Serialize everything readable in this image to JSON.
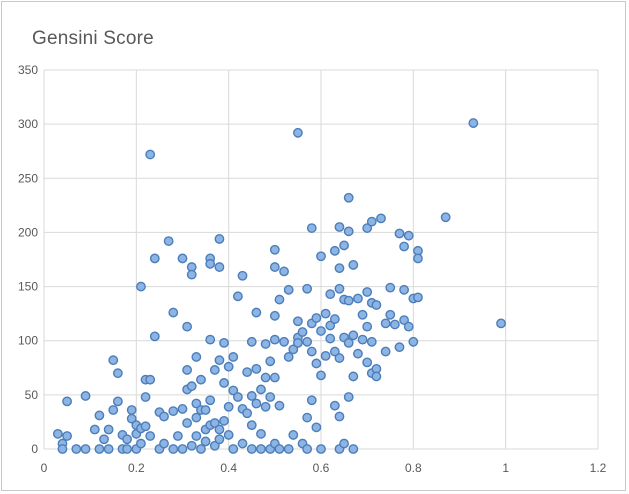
{
  "chart_data": {
    "type": "scatter",
    "title": "Gensini Score",
    "xlabel": "",
    "ylabel": "",
    "xlim": [
      0,
      1.2
    ],
    "ylim": [
      0,
      350
    ],
    "x_ticks": [
      "0",
      "0.2",
      "0.4",
      "0.6",
      "0.8",
      "1",
      "1.2"
    ],
    "y_ticks": [
      "0",
      "50",
      "100",
      "150",
      "200",
      "250",
      "300",
      "350"
    ],
    "grid": "vertical and horizontal major gridlines",
    "legend": "none",
    "marker_fill": "#8eb4e3",
    "marker_edge": "#4a7ebb",
    "points": [
      [
        0.03,
        14
      ],
      [
        0.04,
        5
      ],
      [
        0.05,
        12
      ],
      [
        0.04,
        0
      ],
      [
        0.05,
        44
      ],
      [
        0.07,
        0
      ],
      [
        0.09,
        49
      ],
      [
        0.09,
        0
      ],
      [
        0.11,
        18
      ],
      [
        0.12,
        0
      ],
      [
        0.12,
        31
      ],
      [
        0.13,
        9
      ],
      [
        0.14,
        18
      ],
      [
        0.14,
        0
      ],
      [
        0.15,
        82
      ],
      [
        0.15,
        36
      ],
      [
        0.16,
        70
      ],
      [
        0.16,
        44
      ],
      [
        0.17,
        13
      ],
      [
        0.17,
        0
      ],
      [
        0.18,
        9
      ],
      [
        0.18,
        0
      ],
      [
        0.19,
        28
      ],
      [
        0.19,
        36
      ],
      [
        0.2,
        14
      ],
      [
        0.2,
        22
      ],
      [
        0.2,
        0
      ],
      [
        0.21,
        150
      ],
      [
        0.21,
        19
      ],
      [
        0.21,
        5
      ],
      [
        0.22,
        64
      ],
      [
        0.22,
        48
      ],
      [
        0.22,
        21
      ],
      [
        0.23,
        272
      ],
      [
        0.23,
        64
      ],
      [
        0.23,
        12
      ],
      [
        0.24,
        176
      ],
      [
        0.24,
        104
      ],
      [
        0.25,
        34
      ],
      [
        0.25,
        0
      ],
      [
        0.26,
        30
      ],
      [
        0.26,
        5
      ],
      [
        0.27,
        192
      ],
      [
        0.28,
        126
      ],
      [
        0.28,
        35
      ],
      [
        0.28,
        0
      ],
      [
        0.29,
        12
      ],
      [
        0.3,
        176
      ],
      [
        0.3,
        37
      ],
      [
        0.3,
        0
      ],
      [
        0.31,
        113
      ],
      [
        0.31,
        73
      ],
      [
        0.31,
        55
      ],
      [
        0.31,
        24
      ],
      [
        0.32,
        168
      ],
      [
        0.32,
        161
      ],
      [
        0.32,
        58
      ],
      [
        0.32,
        3
      ],
      [
        0.33,
        85
      ],
      [
        0.33,
        42
      ],
      [
        0.33,
        29
      ],
      [
        0.33,
        12
      ],
      [
        0.34,
        64
      ],
      [
        0.34,
        36
      ],
      [
        0.34,
        0
      ],
      [
        0.35,
        36
      ],
      [
        0.35,
        18
      ],
      [
        0.35,
        7
      ],
      [
        0.36,
        176
      ],
      [
        0.36,
        171
      ],
      [
        0.36,
        101
      ],
      [
        0.36,
        45
      ],
      [
        0.36,
        22
      ],
      [
        0.37,
        73
      ],
      [
        0.37,
        24
      ],
      [
        0.37,
        3
      ],
      [
        0.38,
        194
      ],
      [
        0.38,
        168
      ],
      [
        0.38,
        82
      ],
      [
        0.38,
        18
      ],
      [
        0.38,
        9
      ],
      [
        0.39,
        98
      ],
      [
        0.39,
        61
      ],
      [
        0.39,
        26
      ],
      [
        0.4,
        76
      ],
      [
        0.4,
        39
      ],
      [
        0.4,
        13
      ],
      [
        0.41,
        85
      ],
      [
        0.41,
        54
      ],
      [
        0.41,
        0
      ],
      [
        0.42,
        141
      ],
      [
        0.42,
        48
      ],
      [
        0.43,
        160
      ],
      [
        0.43,
        37
      ],
      [
        0.43,
        5
      ],
      [
        0.44,
        71
      ],
      [
        0.44,
        33
      ],
      [
        0.45,
        99
      ],
      [
        0.45,
        49
      ],
      [
        0.45,
        22
      ],
      [
        0.45,
        0
      ],
      [
        0.46,
        126
      ],
      [
        0.46,
        74
      ],
      [
        0.46,
        42
      ],
      [
        0.47,
        55
      ],
      [
        0.47,
        14
      ],
      [
        0.47,
        0
      ],
      [
        0.48,
        97
      ],
      [
        0.48,
        66
      ],
      [
        0.48,
        39
      ],
      [
        0.49,
        81
      ],
      [
        0.49,
        48
      ],
      [
        0.49,
        0
      ],
      [
        0.5,
        184
      ],
      [
        0.5,
        168
      ],
      [
        0.5,
        123
      ],
      [
        0.5,
        101
      ],
      [
        0.5,
        66
      ],
      [
        0.5,
        5
      ],
      [
        0.51,
        138
      ],
      [
        0.51,
        40
      ],
      [
        0.51,
        0
      ],
      [
        0.52,
        164
      ],
      [
        0.52,
        99
      ],
      [
        0.53,
        147
      ],
      [
        0.53,
        85
      ],
      [
        0.53,
        0
      ],
      [
        0.54,
        92
      ],
      [
        0.54,
        13
      ],
      [
        0.55,
        292
      ],
      [
        0.55,
        118
      ],
      [
        0.55,
        103
      ],
      [
        0.55,
        98
      ],
      [
        0.56,
        108
      ],
      [
        0.56,
        5
      ],
      [
        0.57,
        148
      ],
      [
        0.57,
        99
      ],
      [
        0.57,
        29
      ],
      [
        0.57,
        0
      ],
      [
        0.58,
        204
      ],
      [
        0.58,
        116
      ],
      [
        0.58,
        90
      ],
      [
        0.58,
        45
      ],
      [
        0.59,
        121
      ],
      [
        0.59,
        79
      ],
      [
        0.59,
        20
      ],
      [
        0.6,
        178
      ],
      [
        0.6,
        109
      ],
      [
        0.6,
        68
      ],
      [
        0.6,
        0
      ],
      [
        0.61,
        125
      ],
      [
        0.61,
        86
      ],
      [
        0.62,
        143
      ],
      [
        0.62,
        114
      ],
      [
        0.62,
        102
      ],
      [
        0.63,
        183
      ],
      [
        0.63,
        120
      ],
      [
        0.63,
        90
      ],
      [
        0.63,
        40
      ],
      [
        0.64,
        205
      ],
      [
        0.64,
        167
      ],
      [
        0.64,
        148
      ],
      [
        0.64,
        84
      ],
      [
        0.64,
        30
      ],
      [
        0.64,
        0
      ],
      [
        0.65,
        188
      ],
      [
        0.65,
        138
      ],
      [
        0.65,
        103
      ],
      [
        0.65,
        5
      ],
      [
        0.66,
        232
      ],
      [
        0.66,
        201
      ],
      [
        0.66,
        137
      ],
      [
        0.66,
        98
      ],
      [
        0.66,
        48
      ],
      [
        0.67,
        170
      ],
      [
        0.67,
        105
      ],
      [
        0.67,
        67
      ],
      [
        0.67,
        0
      ],
      [
        0.68,
        139
      ],
      [
        0.68,
        88
      ],
      [
        0.69,
        124
      ],
      [
        0.69,
        101
      ],
      [
        0.7,
        204
      ],
      [
        0.7,
        145
      ],
      [
        0.7,
        113
      ],
      [
        0.7,
        80
      ],
      [
        0.71,
        210
      ],
      [
        0.71,
        135
      ],
      [
        0.71,
        99
      ],
      [
        0.71,
        70
      ],
      [
        0.72,
        133
      ],
      [
        0.72,
        74
      ],
      [
        0.72,
        67
      ],
      [
        0.73,
        213
      ],
      [
        0.74,
        116
      ],
      [
        0.74,
        90
      ],
      [
        0.75,
        149
      ],
      [
        0.75,
        124
      ],
      [
        0.76,
        115
      ],
      [
        0.77,
        199
      ],
      [
        0.77,
        94
      ],
      [
        0.78,
        187
      ],
      [
        0.78,
        147
      ],
      [
        0.78,
        119
      ],
      [
        0.79,
        197
      ],
      [
        0.79,
        113
      ],
      [
        0.8,
        139
      ],
      [
        0.8,
        99
      ],
      [
        0.81,
        183
      ],
      [
        0.81,
        176
      ],
      [
        0.81,
        140
      ],
      [
        0.87,
        214
      ],
      [
        0.93,
        301
      ],
      [
        0.99,
        116
      ]
    ]
  }
}
